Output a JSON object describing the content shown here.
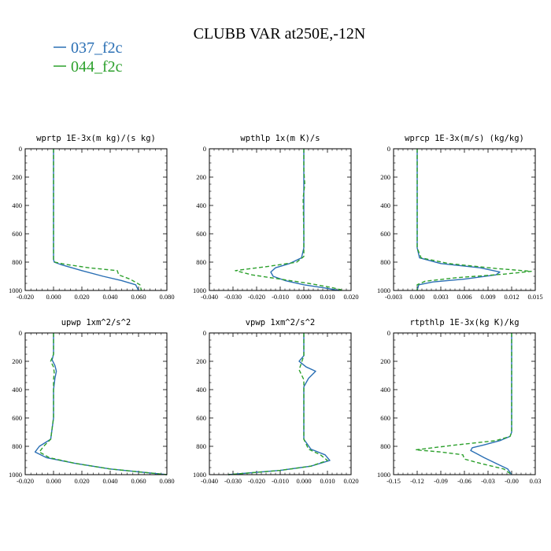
{
  "figure": {
    "title": "CLUBB VAR at250E,-12N",
    "legend": [
      {
        "label": "037_f2c",
        "color": "#2a6fb4",
        "dash": "solid"
      },
      {
        "label": "044_f2c",
        "color": "#2ca02c",
        "dash": "dashed"
      }
    ]
  },
  "chart_data": [
    {
      "type": "line",
      "title": "wprtp  1E-3x(m kg)/(s kg)",
      "xlim": [
        -0.02,
        0.08
      ],
      "ylim": [
        1000,
        0
      ],
      "xticks": [
        "-0.020",
        "0.000",
        "0.020",
        "0.040",
        "0.060",
        "0.080"
      ],
      "yticks": [
        "0",
        "200",
        "400",
        "600",
        "800",
        "1000"
      ],
      "series": [
        {
          "name": "037_f2c",
          "x": [
            0,
            0,
            0,
            0,
            0,
            0,
            0,
            0.0005,
            0.006,
            0.02,
            0.035,
            0.048,
            0.058,
            0.06
          ],
          "y": [
            0,
            200,
            400,
            600,
            700,
            750,
            780,
            800,
            820,
            860,
            900,
            930,
            960,
            1000
          ]
        },
        {
          "name": "044_f2c",
          "x": [
            0,
            0,
            0,
            0,
            0,
            0,
            0,
            0.001,
            0.008,
            0.025,
            0.045,
            0.046,
            0.054,
            0.061,
            0.062
          ],
          "y": [
            0,
            200,
            400,
            600,
            700,
            760,
            790,
            800,
            815,
            840,
            860,
            890,
            920,
            960,
            1000
          ]
        }
      ]
    },
    {
      "type": "line",
      "title": "wpthlp  1x(m K)/s",
      "xlim": [
        -0.04,
        0.02
      ],
      "ylim": [
        1000,
        0
      ],
      "xticks": [
        "-0.040",
        "-0.030",
        "-0.020",
        "-0.010",
        "0.000",
        "0.010",
        "0.020"
      ],
      "yticks": [
        "0",
        "200",
        "400",
        "600",
        "800",
        "1000"
      ],
      "series": [
        {
          "name": "037_f2c",
          "x": [
            0,
            0,
            0,
            0,
            0,
            -0.001,
            -0.006,
            -0.012,
            -0.014,
            -0.013,
            -0.008,
            0,
            0.008,
            0.015
          ],
          "y": [
            0,
            200,
            400,
            600,
            700,
            770,
            810,
            840,
            870,
            900,
            930,
            960,
            980,
            1000
          ]
        },
        {
          "name": "044_f2c",
          "x": [
            0,
            0,
            0.0004,
            -0.0003,
            0,
            0,
            -0.003,
            -0.015,
            -0.029,
            -0.022,
            -0.01,
            0.002,
            0.012,
            0.017
          ],
          "y": [
            0,
            150,
            250,
            350,
            600,
            760,
            800,
            830,
            860,
            890,
            920,
            950,
            980,
            1000
          ]
        }
      ]
    },
    {
      "type": "line",
      "title": "wprcp  1E-3x(m/s) (kg/kg)",
      "xlim": [
        -0.003,
        0.015
      ],
      "ylim": [
        1000,
        0
      ],
      "xticks": [
        "-0.003",
        "0.000",
        "0.003",
        "0.006",
        "0.009",
        "0.012",
        "0.015"
      ],
      "yticks": [
        "0",
        "200",
        "400",
        "600",
        "800",
        "1000"
      ],
      "series": [
        {
          "name": "037_f2c",
          "x": [
            0,
            0,
            0,
            0,
            0,
            0.0003,
            0.003,
            0.008,
            0.0105,
            0.01,
            0.006,
            0.002,
            0.0002,
            0
          ],
          "y": [
            0,
            200,
            400,
            600,
            700,
            770,
            810,
            840,
            870,
            890,
            920,
            940,
            960,
            1000
          ]
        },
        {
          "name": "044_f2c",
          "x": [
            0,
            0,
            0,
            0,
            0,
            0.0005,
            0.004,
            0.01,
            0.0145,
            0.011,
            0.005,
            0.001,
            0,
            0
          ],
          "y": [
            0,
            200,
            400,
            600,
            700,
            770,
            810,
            845,
            865,
            885,
            910,
            935,
            960,
            1000
          ]
        }
      ]
    },
    {
      "type": "line",
      "title": "upwp  1xm^2/s^2",
      "xlim": [
        -0.02,
        0.08
      ],
      "ylim": [
        1000,
        0
      ],
      "xticks": [
        "-0.020",
        "0.000",
        "0.020",
        "0.040",
        "0.060",
        "0.080"
      ],
      "yticks": [
        "0",
        "200",
        "400",
        "600",
        "800",
        "1000"
      ],
      "series": [
        {
          "name": "037_f2c",
          "x": [
            0,
            0,
            -0.001,
            0.001,
            0.002,
            0.001,
            0,
            0,
            -0.002,
            -0.01,
            -0.013,
            -0.005,
            0.015,
            0.04,
            0.08
          ],
          "y": [
            0,
            150,
            190,
            230,
            270,
            320,
            400,
            600,
            750,
            800,
            840,
            880,
            920,
            960,
            1000
          ]
        },
        {
          "name": "044_f2c",
          "x": [
            0,
            0,
            -0.002,
            0,
            0.0005,
            0,
            0,
            0,
            -0.002,
            -0.007,
            -0.01,
            -0.003,
            0.015,
            0.04,
            0.08
          ],
          "y": [
            0,
            150,
            200,
            240,
            280,
            330,
            400,
            600,
            750,
            800,
            840,
            880,
            920,
            960,
            1000
          ]
        }
      ]
    },
    {
      "type": "line",
      "title": "vpwp  1xm^2/s^2",
      "xlim": [
        -0.04,
        0.02
      ],
      "ylim": [
        1000,
        0
      ],
      "xticks": [
        "-0.040",
        "-0.030",
        "-0.020",
        "-0.010",
        "0.000",
        "0.010",
        "0.020"
      ],
      "yticks": [
        "0",
        "200",
        "400",
        "600",
        "800",
        "1000"
      ],
      "series": [
        {
          "name": "037_f2c",
          "x": [
            0,
            0,
            -0.002,
            0.001,
            0.005,
            0.002,
            0,
            0,
            0,
            0.003,
            0.009,
            0.011,
            0.003,
            -0.01,
            -0.032
          ],
          "y": [
            0,
            160,
            200,
            240,
            270,
            320,
            380,
            600,
            750,
            820,
            860,
            900,
            940,
            970,
            1000
          ]
        },
        {
          "name": "044_f2c",
          "x": [
            0,
            0,
            -0.001,
            -0.002,
            0,
            0,
            0,
            0.002,
            0.007,
            0.01,
            0.003,
            -0.01,
            -0.032
          ],
          "y": [
            0,
            160,
            210,
            260,
            330,
            600,
            750,
            820,
            860,
            900,
            940,
            970,
            1000
          ]
        }
      ]
    },
    {
      "type": "line",
      "title": "rtpthlp  1E-3x(kg K)/kg",
      "xlim": [
        -0.15,
        0.03
      ],
      "ylim": [
        1000,
        0
      ],
      "xticks": [
        "-0.15",
        "-0.12",
        "-0.09",
        "-0.06",
        "-0.03",
        "-0.00",
        "0.03"
      ],
      "yticks": [
        "0",
        "200",
        "400",
        "600",
        "800",
        "1000"
      ],
      "series": [
        {
          "name": "037_f2c",
          "x": [
            0,
            0,
            0,
            -0.002,
            -0.015,
            -0.035,
            -0.05,
            -0.052,
            -0.045,
            -0.035,
            -0.02,
            -0.005,
            0
          ],
          "y": [
            0,
            400,
            700,
            730,
            760,
            790,
            810,
            830,
            850,
            880,
            920,
            960,
            1000
          ]
        },
        {
          "name": "044_f2c",
          "x": [
            0,
            0,
            0,
            -0.002,
            -0.02,
            -0.07,
            -0.122,
            -0.09,
            -0.062,
            -0.06,
            -0.04,
            -0.01,
            0
          ],
          "y": [
            0,
            400,
            700,
            730,
            760,
            790,
            825,
            840,
            860,
            890,
            920,
            960,
            1000
          ]
        }
      ]
    }
  ]
}
